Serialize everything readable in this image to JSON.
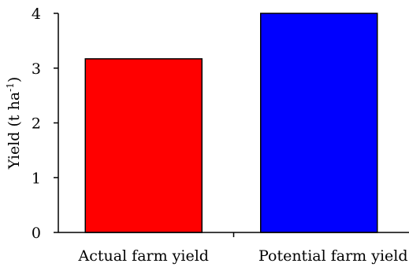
{
  "chart_data": {
    "type": "bar",
    "title": "",
    "xlabel": "",
    "ylabel": "Yield (t ha",
    "ylabel_superscript": "-1",
    "ylabel_suffix": ")",
    "categories": [
      "Actual farm yield",
      "Potential farm yield"
    ],
    "values": [
      3.17,
      4.0
    ],
    "colors": [
      "#ff0000",
      "#0000ff"
    ],
    "ylim": [
      0,
      4
    ],
    "yticks": [
      0,
      1,
      2,
      3,
      4
    ],
    "grid": false,
    "legend": "none"
  }
}
